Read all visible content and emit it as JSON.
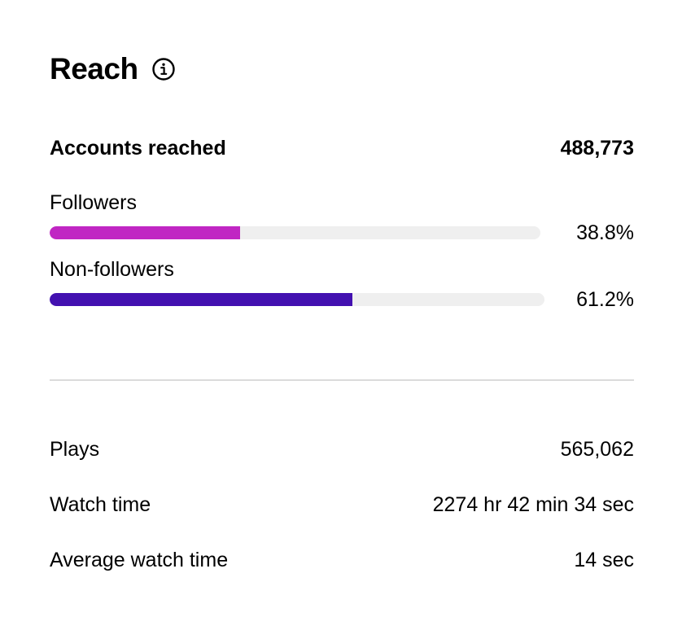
{
  "section": {
    "title": "Reach",
    "info_icon": "info-circle-icon"
  },
  "accounts": {
    "label": "Accounts reached",
    "value": "488,773"
  },
  "segments": [
    {
      "label": "Followers",
      "percent_text": "38.8%",
      "percent": 38.8,
      "color": "#c026c3"
    },
    {
      "label": "Non-followers",
      "percent_text": "61.2%",
      "percent": 61.2,
      "color": "#4311b0"
    }
  ],
  "track_color": "#efefef",
  "metrics": [
    {
      "label": "Plays",
      "value": "565,062"
    },
    {
      "label": "Watch time",
      "value": "2274 hr 42 min 34 sec"
    },
    {
      "label": "Average watch time",
      "value": "14 sec"
    }
  ]
}
